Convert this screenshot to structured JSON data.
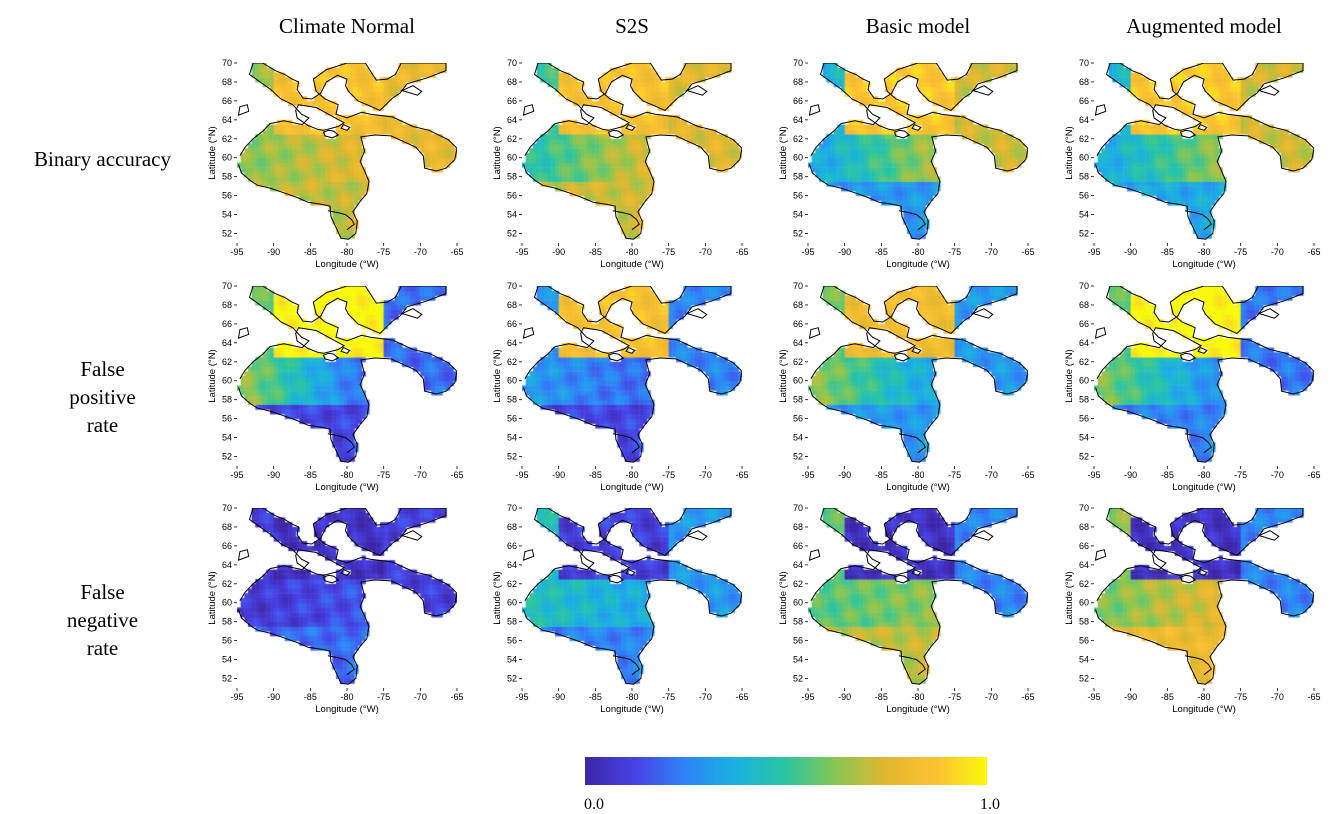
{
  "columns": [
    "Climate Normal",
    "S2S",
    "Basic model",
    "Augmented model"
  ],
  "rows": [
    [
      "Binary accuracy"
    ],
    [
      "False",
      "positive",
      "rate"
    ],
    [
      "False",
      "negative",
      "rate"
    ]
  ],
  "colormap": [
    "#3e26a8",
    "#4743e6",
    "#2f85f7",
    "#1ab2df",
    "#2cc5a0",
    "#8ac652",
    "#e2b72f",
    "#fdc131",
    "#f8fa0d"
  ],
  "chart_data": {
    "type": "heatmap",
    "layout": "3x4 grid of maps",
    "xlabel": "Longitude (°W)",
    "ylabel": "Latitude (°N)",
    "x_ticks": [
      -95,
      -90,
      -85,
      -80,
      -75,
      -70,
      -65
    ],
    "y_ticks": [
      52,
      54,
      56,
      58,
      60,
      62,
      64,
      66,
      68,
      70
    ],
    "xlim": [
      -95,
      -65
    ],
    "ylim": [
      51,
      70
    ],
    "colorbar": {
      "min_label": "0.0",
      "max_label": "1.0",
      "range": [
        0,
        1
      ]
    },
    "panels": [
      {
        "row": "Binary accuracy",
        "column": "Climate Normal",
        "north": 0.85,
        "west": 0.62,
        "east": 0.75,
        "south": 0.7,
        "outer": 0.78
      },
      {
        "row": "Binary accuracy",
        "column": "S2S",
        "north": 0.85,
        "west": 0.48,
        "east": 0.72,
        "south": 0.72,
        "outer": 0.75
      },
      {
        "row": "Binary accuracy",
        "column": "Basic model",
        "north": 0.88,
        "west": 0.35,
        "east": 0.65,
        "south": 0.3,
        "outer": 0.72
      },
      {
        "row": "Binary accuracy",
        "column": "Augmented model",
        "north": 0.88,
        "west": 0.36,
        "east": 0.62,
        "south": 0.35,
        "outer": 0.72
      },
      {
        "row": "False positive rate",
        "column": "Climate Normal",
        "north": 1.0,
        "west": 0.62,
        "east": 0.22,
        "south": 0.12,
        "outer": 0.2
      },
      {
        "row": "False positive rate",
        "column": "S2S",
        "north": 0.85,
        "west": 0.3,
        "east": 0.2,
        "south": 0.12,
        "outer": 0.25
      },
      {
        "row": "False positive rate",
        "column": "Basic model",
        "north": 0.82,
        "west": 0.62,
        "east": 0.35,
        "south": 0.3,
        "outer": 0.3
      },
      {
        "row": "False positive rate",
        "column": "Augmented model",
        "north": 1.0,
        "west": 0.6,
        "east": 0.28,
        "south": 0.25,
        "outer": 0.22
      },
      {
        "row": "False negative rate",
        "column": "Climate Normal",
        "north": 0.05,
        "west": 0.08,
        "east": 0.15,
        "south": 0.2,
        "outer": 0.1
      },
      {
        "row": "False negative rate",
        "column": "S2S",
        "north": 0.1,
        "west": 0.45,
        "east": 0.35,
        "south": 0.25,
        "outer": 0.3
      },
      {
        "row": "False negative rate",
        "column": "Basic model",
        "north": 0.05,
        "west": 0.55,
        "east": 0.62,
        "south": 0.7,
        "outer": 0.25
      },
      {
        "row": "False negative rate",
        "column": "Augmented model",
        "north": 0.05,
        "west": 0.6,
        "east": 0.75,
        "south": 0.8,
        "outer": 0.25
      }
    ]
  }
}
